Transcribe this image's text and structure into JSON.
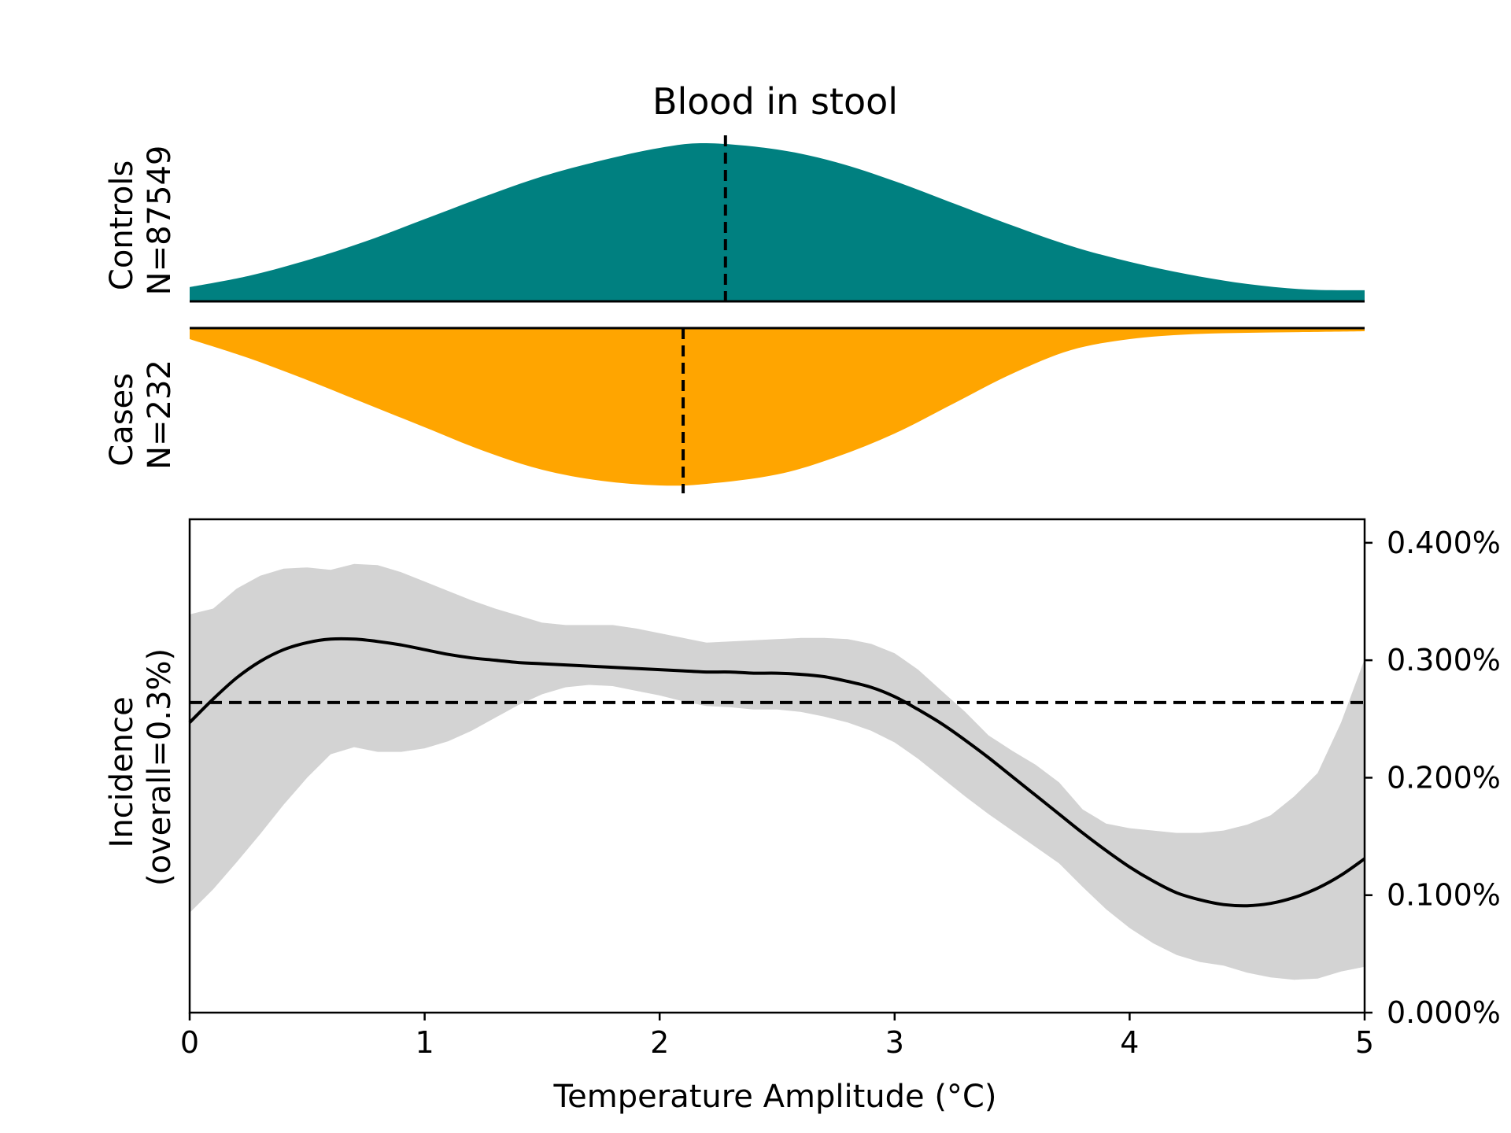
{
  "chart_data": {
    "type": "area",
    "title": "Blood in stool",
    "xlabel": "Temperature Amplitude (°C)",
    "ylabel": [
      "Incidence",
      "(overall=0.3%)"
    ],
    "xlim": [
      0,
      5
    ],
    "ylim_right": [
      0,
      0.0042
    ],
    "x_ticks": [
      0,
      1,
      2,
      3,
      4,
      5
    ],
    "x_tick_labels": [
      "0",
      "1",
      "2",
      "3",
      "4",
      "5"
    ],
    "y_ticks": [
      0,
      0.001,
      0.002,
      0.003,
      0.004
    ],
    "y_tick_labels": [
      "0.000%",
      "0.100%",
      "0.200%",
      "0.300%",
      "0.400%"
    ],
    "overall_incidence": 0.00264,
    "colors": {
      "controls": "#008080",
      "cases": "#ffa500",
      "ci_band": "#d3d3d3",
      "line": "#000000"
    },
    "distributions": {
      "controls": {
        "label_line1": "Controls",
        "label_line2": "N=87549",
        "median": 2.28,
        "x": [
          0,
          0.25,
          0.5,
          0.75,
          1.0,
          1.25,
          1.5,
          1.75,
          2.0,
          2.2,
          2.5,
          2.75,
          3.0,
          3.25,
          3.5,
          3.75,
          4.0,
          4.25,
          4.5,
          4.75,
          5.0
        ],
        "density": [
          0.09,
          0.16,
          0.26,
          0.38,
          0.52,
          0.66,
          0.79,
          0.89,
          0.97,
          1.0,
          0.96,
          0.88,
          0.76,
          0.62,
          0.48,
          0.35,
          0.25,
          0.17,
          0.11,
          0.075,
          0.07
        ]
      },
      "cases": {
        "label_line1": "Cases",
        "label_line2": "N=232",
        "median": 2.1,
        "x": [
          0,
          0.25,
          0.5,
          0.75,
          1.0,
          1.25,
          1.5,
          1.75,
          2.0,
          2.2,
          2.5,
          2.75,
          3.0,
          3.25,
          3.5,
          3.75,
          4.0,
          4.25,
          4.5,
          4.75,
          5.0
        ],
        "density": [
          0.07,
          0.19,
          0.33,
          0.48,
          0.63,
          0.78,
          0.9,
          0.97,
          1.0,
          0.99,
          0.93,
          0.82,
          0.67,
          0.48,
          0.29,
          0.14,
          0.07,
          0.04,
          0.03,
          0.025,
          0.02
        ]
      }
    },
    "series": [
      {
        "x": [
          0,
          0.1,
          0.2,
          0.3,
          0.4,
          0.5,
          0.6,
          0.7,
          0.8,
          0.9,
          1.0,
          1.1,
          1.2,
          1.3,
          1.4,
          1.5,
          1.6,
          1.7,
          1.8,
          1.9,
          2.0,
          2.1,
          2.2,
          2.3,
          2.4,
          2.5,
          2.6,
          2.7,
          2.8,
          2.9,
          3.0,
          3.1,
          3.2,
          3.3,
          3.4,
          3.5,
          3.6,
          3.7,
          3.8,
          3.9,
          4.0,
          4.1,
          4.2,
          4.3,
          4.4,
          4.5,
          4.6,
          4.7,
          4.8,
          4.9,
          5.0
        ],
        "y": [
          0.00247,
          0.00267,
          0.00285,
          0.00299,
          0.00309,
          0.00315,
          0.00318,
          0.00318,
          0.00316,
          0.00313,
          0.00309,
          0.00305,
          0.00302,
          0.003,
          0.00298,
          0.00297,
          0.00296,
          0.00295,
          0.00294,
          0.00293,
          0.00292,
          0.00291,
          0.0029,
          0.0029,
          0.00289,
          0.00289,
          0.00288,
          0.00286,
          0.00282,
          0.00277,
          0.00269,
          0.00258,
          0.00246,
          0.00232,
          0.00217,
          0.00201,
          0.00185,
          0.00169,
          0.00153,
          0.00138,
          0.00124,
          0.00112,
          0.00102,
          0.00096,
          0.00092,
          0.00091,
          0.00093,
          0.00098,
          0.00106,
          0.00117,
          0.00131
        ],
        "ci_lower": [
          0.00085,
          0.00105,
          0.00128,
          0.00152,
          0.00177,
          0.002,
          0.0022,
          0.00226,
          0.00222,
          0.00222,
          0.00225,
          0.00231,
          0.0024,
          0.00251,
          0.00262,
          0.00271,
          0.00277,
          0.00279,
          0.00278,
          0.00274,
          0.0027,
          0.00265,
          0.00261,
          0.0026,
          0.00258,
          0.00258,
          0.00256,
          0.00252,
          0.00247,
          0.0024,
          0.0023,
          0.00216,
          0.002,
          0.00184,
          0.00169,
          0.00155,
          0.00141,
          0.00127,
          0.00107,
          0.00088,
          0.00072,
          0.00059,
          0.00049,
          0.00043,
          0.0004,
          0.00034,
          0.0003,
          0.00028,
          0.00029,
          0.00035,
          0.00039
        ],
        "ci_upper": [
          0.00339,
          0.00344,
          0.00361,
          0.00372,
          0.00378,
          0.00379,
          0.00377,
          0.00382,
          0.00381,
          0.00375,
          0.00367,
          0.00359,
          0.00351,
          0.00344,
          0.00338,
          0.00332,
          0.0033,
          0.0033,
          0.0033,
          0.00327,
          0.00323,
          0.00319,
          0.00315,
          0.00316,
          0.00317,
          0.00318,
          0.00319,
          0.00319,
          0.00318,
          0.00314,
          0.00306,
          0.00292,
          0.00274,
          0.00256,
          0.00236,
          0.00223,
          0.00211,
          0.00196,
          0.00173,
          0.00161,
          0.00157,
          0.00155,
          0.00153,
          0.00153,
          0.00155,
          0.0016,
          0.00168,
          0.00184,
          0.00204,
          0.00247,
          0.00301
        ]
      }
    ]
  }
}
